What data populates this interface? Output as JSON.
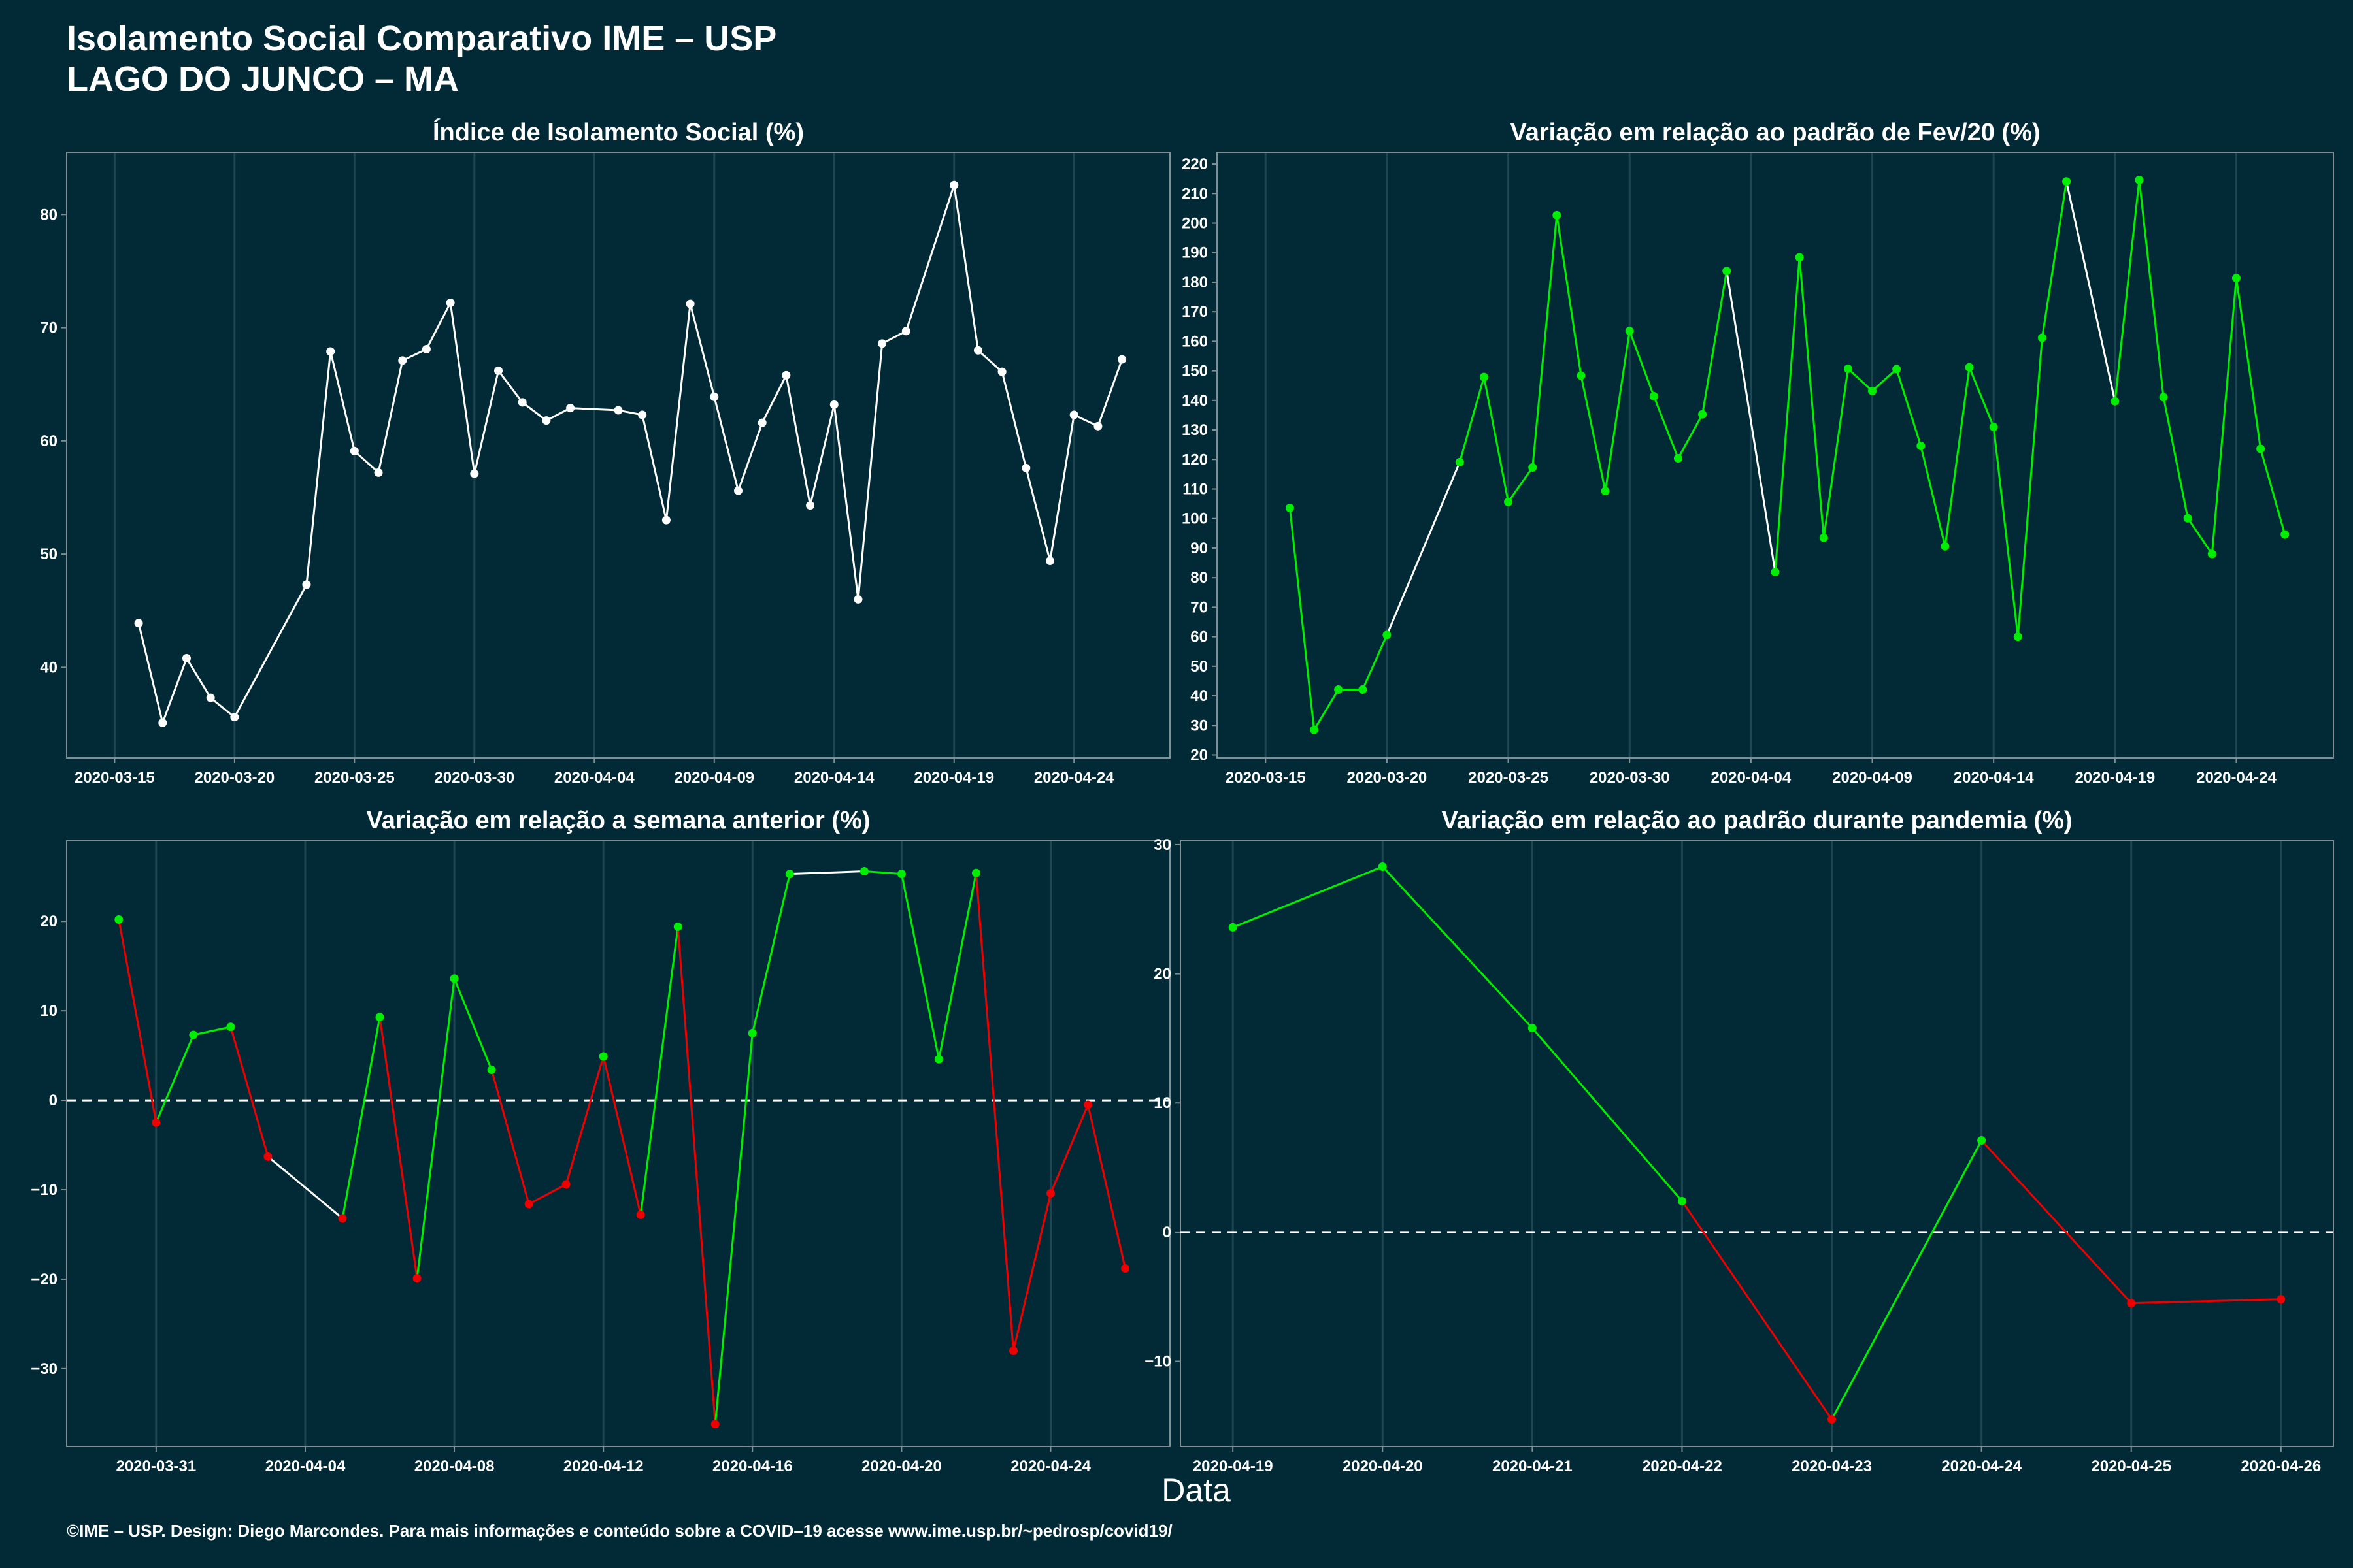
{
  "header": {
    "title": "Isolamento Social Comparativo IME – USP",
    "subtitle": "LAGO DO JUNCO – MA"
  },
  "xaxis_label": "Data",
  "footer": "©IME – USP. Design: Diego Marcondes. Para mais informações e conteúdo sobre a COVID–19 acesse www.ime.usp.br/~pedrosp/covid19/",
  "colors": {
    "background": "#012a36",
    "axis": "#7f8f94",
    "grid": "#1d4652",
    "line_white": "#ffffff",
    "green": "#00ee00",
    "red": "#ee0000"
  },
  "chart_data": [
    {
      "type": "line",
      "title": "Índice de Isolamento Social (%)",
      "x_start": "2020-03-13",
      "x_end": "2020-04-28",
      "xticks": [
        "2020-03-15",
        "2020-03-20",
        "2020-03-25",
        "2020-03-30",
        "2020-04-04",
        "2020-04-09",
        "2020-04-14",
        "2020-04-19",
        "2020-04-24"
      ],
      "ylim": [
        32,
        85.5
      ],
      "yticks": [
        40,
        50,
        60,
        70,
        80
      ],
      "zero_line": false,
      "points": [
        [
          "2020-03-16",
          43.9
        ],
        [
          "2020-03-17",
          35.1
        ],
        [
          "2020-03-18",
          40.8
        ],
        [
          "2020-03-19",
          37.3
        ],
        [
          "2020-03-20",
          35.6
        ],
        [
          "2020-03-23",
          47.3
        ],
        [
          "2020-03-24",
          67.9
        ],
        [
          "2020-03-25",
          59.1
        ],
        [
          "2020-03-26",
          57.2
        ],
        [
          "2020-03-27",
          67.1
        ],
        [
          "2020-03-28",
          68.1
        ],
        [
          "2020-03-29",
          72.2
        ],
        [
          "2020-03-30",
          57.1
        ],
        [
          "2020-03-31",
          66.2
        ],
        [
          "2020-04-01",
          63.4
        ],
        [
          "2020-04-02",
          61.8
        ],
        [
          "2020-04-03",
          62.9
        ],
        [
          "2020-04-05",
          62.7
        ],
        [
          "2020-04-06",
          62.3
        ],
        [
          "2020-04-07",
          53.0
        ],
        [
          "2020-04-08",
          72.1
        ],
        [
          "2020-04-09",
          63.9
        ],
        [
          "2020-04-10",
          55.6
        ],
        [
          "2020-04-11",
          61.6
        ],
        [
          "2020-04-12",
          65.8
        ],
        [
          "2020-04-13",
          54.3
        ],
        [
          "2020-04-14",
          63.2
        ],
        [
          "2020-04-15",
          46.0
        ],
        [
          "2020-04-16",
          68.6
        ],
        [
          "2020-04-17",
          69.7
        ],
        [
          "2020-04-19",
          82.6
        ],
        [
          "2020-04-20",
          68.0
        ],
        [
          "2020-04-21",
          66.1
        ],
        [
          "2020-04-22",
          57.6
        ],
        [
          "2020-04-23",
          49.4
        ],
        [
          "2020-04-24",
          62.3
        ],
        [
          "2020-04-25",
          61.3
        ],
        [
          "2020-04-26",
          67.2
        ]
      ],
      "point_colors": [
        "white"
      ],
      "segment_colors": [
        "white"
      ]
    },
    {
      "type": "line",
      "title": "Variação em relação ao padrão de Fev/20 (%)",
      "x_start": "2020-03-13",
      "x_end": "2020-04-28",
      "xticks": [
        "2020-03-15",
        "2020-03-20",
        "2020-03-25",
        "2020-03-30",
        "2020-04-04",
        "2020-04-09",
        "2020-04-14",
        "2020-04-19",
        "2020-04-24"
      ],
      "ylim": [
        19,
        224
      ],
      "yticks": [
        20,
        30,
        40,
        50,
        60,
        70,
        80,
        90,
        100,
        110,
        120,
        130,
        140,
        150,
        160,
        170,
        180,
        190,
        200,
        210,
        220
      ],
      "zero_line": false,
      "points": [
        [
          "2020-03-16",
          103.6
        ],
        [
          "2020-03-17",
          28.5
        ],
        [
          "2020-03-18",
          42.1
        ],
        [
          "2020-03-19",
          42.1
        ],
        [
          "2020-03-20",
          60.6
        ],
        [
          "2020-03-23",
          119.1
        ],
        [
          "2020-03-24",
          147.9
        ],
        [
          "2020-03-25",
          105.6
        ],
        [
          "2020-03-26",
          117.3
        ],
        [
          "2020-03-27",
          202.7
        ],
        [
          "2020-03-28",
          148.4
        ],
        [
          "2020-03-29",
          109.3
        ],
        [
          "2020-03-30",
          163.5
        ],
        [
          "2020-03-31",
          141.4
        ],
        [
          "2020-04-01",
          120.4
        ],
        [
          "2020-04-02",
          135.3
        ],
        [
          "2020-04-03",
          183.8
        ],
        [
          "2020-04-05",
          81.9
        ],
        [
          "2020-04-06",
          188.4
        ],
        [
          "2020-04-07",
          93.5
        ],
        [
          "2020-04-08",
          150.7
        ],
        [
          "2020-04-09",
          143.2
        ],
        [
          "2020-04-10",
          150.6
        ],
        [
          "2020-04-11",
          124.6
        ],
        [
          "2020-04-12",
          90.6
        ],
        [
          "2020-04-13",
          151.2
        ],
        [
          "2020-04-14",
          131.0
        ],
        [
          "2020-04-15",
          60.0
        ],
        [
          "2020-04-16",
          161.2
        ],
        [
          "2020-04-17",
          214.1
        ],
        [
          "2020-04-19",
          139.7
        ],
        [
          "2020-04-20",
          214.6
        ],
        [
          "2020-04-21",
          141.1
        ],
        [
          "2020-04-22",
          100.1
        ],
        [
          "2020-04-23",
          88.0
        ],
        [
          "2020-04-24",
          181.4
        ],
        [
          "2020-04-25",
          123.6
        ],
        [
          "2020-04-26",
          94.6
        ]
      ],
      "point_colors": [
        "green",
        "green",
        "green",
        "green",
        "green",
        "green",
        "green",
        "green",
        "green",
        "green",
        "green",
        "green",
        "green",
        "green",
        "green",
        "green",
        "green",
        "green",
        "green",
        "green",
        "green",
        "green",
        "green",
        "green",
        "green",
        "green",
        "green",
        "green",
        "green",
        "green",
        "green",
        "green",
        "green",
        "green",
        "green",
        "green",
        "green",
        "green"
      ],
      "segment_colors": [
        "green",
        "green",
        "green",
        "green",
        "white",
        "green",
        "green",
        "green",
        "green",
        "green",
        "green",
        "green",
        "green",
        "green",
        "green",
        "green",
        "white",
        "green",
        "green",
        "green",
        "green",
        "green",
        "green",
        "green",
        "green",
        "green",
        "green",
        "green",
        "green",
        "white",
        "green",
        "green",
        "green",
        "green",
        "green",
        "green",
        "green"
      ]
    },
    {
      "type": "line",
      "title": "Variação em relação a semana anterior (%)",
      "x_start": "2020-03-28.6",
      "x_end": "2020-04-27.2",
      "xticks": [
        "2020-03-31",
        "2020-04-04",
        "2020-04-08",
        "2020-04-12",
        "2020-04-16",
        "2020-04-20",
        "2020-04-24"
      ],
      "ylim": [
        -38.7,
        29
      ],
      "yticks": [
        -30,
        -20,
        -10,
        0,
        10,
        20
      ],
      "zero_line": true,
      "points": [
        [
          "2020-03-30",
          20.2
        ],
        [
          "2020-03-31",
          -2.5
        ],
        [
          "2020-04-01",
          7.3
        ],
        [
          "2020-04-02",
          8.2
        ],
        [
          "2020-04-03",
          -6.3
        ],
        [
          "2020-04-05",
          -13.2
        ],
        [
          "2020-04-06",
          9.3
        ],
        [
          "2020-04-07",
          -19.9
        ],
        [
          "2020-04-08",
          13.6
        ],
        [
          "2020-04-09",
          3.4
        ],
        [
          "2020-04-10",
          -11.6
        ],
        [
          "2020-04-11",
          -9.4
        ],
        [
          "2020-04-12",
          4.9
        ],
        [
          "2020-04-13",
          -12.8
        ],
        [
          "2020-04-14",
          19.4
        ],
        [
          "2020-04-15",
          -36.2
        ],
        [
          "2020-04-16",
          7.5
        ],
        [
          "2020-04-17",
          25.3
        ],
        [
          "2020-04-19",
          25.6
        ],
        [
          "2020-04-20",
          25.3
        ],
        [
          "2020-04-21",
          4.6
        ],
        [
          "2020-04-22",
          25.4
        ],
        [
          "2020-04-23",
          -28.0
        ],
        [
          "2020-04-24",
          -10.4
        ],
        [
          "2020-04-25",
          -0.5
        ],
        [
          "2020-04-26",
          -18.8
        ]
      ],
      "point_colors": [
        "green",
        "red",
        "green",
        "green",
        "red",
        "red",
        "green",
        "red",
        "green",
        "green",
        "red",
        "red",
        "green",
        "red",
        "green",
        "red",
        "green",
        "green",
        "green",
        "green",
        "green",
        "green",
        "red",
        "red",
        "red",
        "red"
      ],
      "segment_colors": [
        "red",
        "green",
        "green",
        "red",
        "white",
        "green",
        "red",
        "green",
        "green",
        "red",
        "red",
        "red",
        "red",
        "green",
        "red",
        "green",
        "green",
        "white",
        "green",
        "green",
        "green",
        "red",
        "red",
        "red",
        "red"
      ]
    },
    {
      "type": "line",
      "title": "Variação em relação ao padrão durante pandemia (%)",
      "x_start": "2020-04-18.65",
      "x_end": "2020-04-26.35",
      "xticks": [
        "2020-04-19",
        "2020-04-20",
        "2020-04-21",
        "2020-04-22",
        "2020-04-23",
        "2020-04-24",
        "2020-04-25",
        "2020-04-26"
      ],
      "ylim": [
        -16.6,
        30.3
      ],
      "yticks": [
        -10,
        0,
        10,
        20,
        30
      ],
      "zero_line": true,
      "points": [
        [
          "2020-04-19",
          23.6
        ],
        [
          "2020-04-20",
          28.3
        ],
        [
          "2020-04-21",
          15.8
        ],
        [
          "2020-04-22",
          2.4
        ],
        [
          "2020-04-23",
          -14.5
        ],
        [
          "2020-04-24",
          7.1
        ],
        [
          "2020-04-25",
          -5.5
        ],
        [
          "2020-04-26",
          -5.2
        ]
      ],
      "point_colors": [
        "green",
        "green",
        "green",
        "green",
        "red",
        "green",
        "red",
        "red"
      ],
      "segment_colors": [
        "green",
        "green",
        "green",
        "red",
        "green",
        "red",
        "red"
      ]
    }
  ]
}
